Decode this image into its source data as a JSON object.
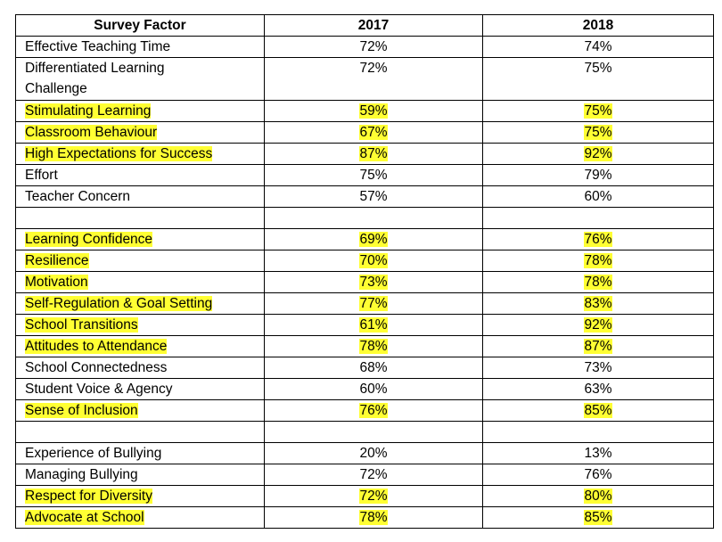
{
  "table": {
    "headers": [
      "Survey Factor",
      "2017",
      "2018"
    ],
    "rows": [
      {
        "factor": "Effective Teaching Time",
        "y2017": "72%",
        "y2018": "74%",
        "highlight": false
      },
      {
        "factor": "Differentiated Learning Challenge",
        "y2017": "72%",
        "y2018": "75%",
        "highlight": false
      },
      {
        "factor": "Stimulating Learning",
        "y2017": "59%",
        "y2018": "75%",
        "highlight": true
      },
      {
        "factor": "Classroom Behaviour",
        "y2017": "67%",
        "y2018": "75%",
        "highlight": true
      },
      {
        "factor": "High Expectations for Success",
        "y2017": "87%",
        "y2018": "92%",
        "highlight": true
      },
      {
        "factor": "Effort",
        "y2017": "75%",
        "y2018": "79%",
        "highlight": false
      },
      {
        "factor": "Teacher Concern",
        "y2017": "57%",
        "y2018": "60%",
        "highlight": false
      },
      {
        "factor": "",
        "y2017": "",
        "y2018": "",
        "highlight": false
      },
      {
        "factor": "Learning Confidence",
        "y2017": "69%",
        "y2018": "76%",
        "highlight": true
      },
      {
        "factor": "Resilience",
        "y2017": "70%",
        "y2018": "78%",
        "highlight": true
      },
      {
        "factor": "Motivation",
        "y2017": "73%",
        "y2018": "78%",
        "highlight": true
      },
      {
        "factor": "Self-Regulation & Goal Setting",
        "y2017": "77%",
        "y2018": "83%",
        "highlight": true
      },
      {
        "factor": "School Transitions",
        "y2017": "61%",
        "y2018": "92%",
        "highlight": true
      },
      {
        "factor": "Attitudes to Attendance",
        "y2017": "78%",
        "y2018": "87%",
        "highlight": true
      },
      {
        "factor": "School Connectedness",
        "y2017": "68%",
        "y2018": "73%",
        "highlight": false
      },
      {
        "factor": "Student Voice & Agency",
        "y2017": "60%",
        "y2018": "63%",
        "highlight": false
      },
      {
        "factor": "Sense of Inclusion",
        "y2017": "76%",
        "y2018": "85%",
        "highlight": true
      },
      {
        "factor": "",
        "y2017": "",
        "y2018": "",
        "highlight": false
      },
      {
        "factor": "Experience of Bullying",
        "y2017": "20%",
        "y2018": "13%",
        "highlight": false
      },
      {
        "factor": "Managing Bullying",
        "y2017": "72%",
        "y2018": "76%",
        "highlight": false
      },
      {
        "factor": "Respect for Diversity",
        "y2017": "72%",
        "y2018": "80%",
        "highlight": true
      },
      {
        "factor": "Advocate at School",
        "y2017": "78%",
        "y2018": "85%",
        "highlight": true
      }
    ]
  },
  "colors": {
    "highlight": "#ffff33",
    "border": "#000000"
  }
}
